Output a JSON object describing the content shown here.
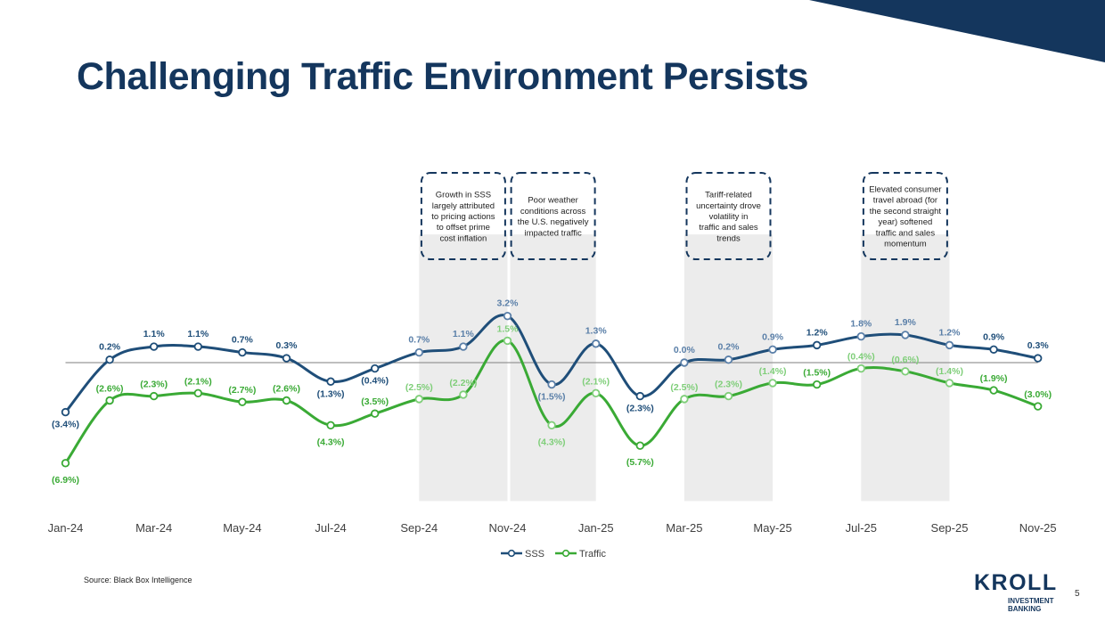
{
  "slide": {
    "title": "Challenging Traffic Environment Persists",
    "source": "Source: Black Box Intelligence",
    "page_number": "5",
    "logo": {
      "name": "KROLL",
      "sub_line1": "INVESTMENT",
      "sub_line2": "BANKING"
    }
  },
  "colors": {
    "title": "#14365d",
    "sss_line": "#1f4e79",
    "sss_line_light": "#5a7fa8",
    "traffic_line": "#3aaa35",
    "traffic_line_light": "#7fce79",
    "highlight_band": "#ececec",
    "callout_border": "#14365d"
  },
  "chart_data": {
    "type": "line",
    "categories": [
      "Jan-24",
      "Feb-24",
      "Mar-24",
      "Apr-24",
      "May-24",
      "Jun-24",
      "Jul-24",
      "Aug-24",
      "Sep-24",
      "Oct-24",
      "Nov-24",
      "Dec-24",
      "Jan-25",
      "Feb-25",
      "Mar-25",
      "Apr-25",
      "May-25",
      "Jun-25",
      "Jul-25",
      "Aug-25",
      "Sep-25",
      "Oct-25",
      "Nov-25"
    ],
    "x_tick_labels": [
      "Jan-24",
      "Mar-24",
      "May-24",
      "Jul-24",
      "Sep-24",
      "Nov-24",
      "Jan-25",
      "Mar-25",
      "May-25",
      "Jul-25",
      "Sep-25",
      "Nov-25"
    ],
    "series": [
      {
        "name": "SSS",
        "values": [
          -3.4,
          0.2,
          1.1,
          1.1,
          0.7,
          0.3,
          -1.3,
          -0.4,
          0.7,
          1.1,
          3.2,
          -1.5,
          1.3,
          -2.3,
          0.0,
          0.2,
          0.9,
          1.2,
          1.8,
          1.9,
          1.2,
          0.9,
          0.3
        ],
        "labels": [
          "(3.4%)",
          "0.2%",
          "1.1%",
          "1.1%",
          "0.7%",
          "0.3%",
          "(1.3%)",
          "(0.4%)",
          "0.7%",
          "1.1%",
          "3.2%",
          "(1.5%)",
          "1.3%",
          "(2.3%)",
          "0.0%",
          "0.2%",
          "0.9%",
          "1.2%",
          "1.8%",
          "1.9%",
          "1.2%",
          "0.9%",
          "0.3%"
        ]
      },
      {
        "name": "Traffic",
        "values": [
          -6.9,
          -2.6,
          -2.3,
          -2.1,
          -2.7,
          -2.6,
          -4.3,
          -3.5,
          -2.5,
          -2.2,
          1.5,
          -4.3,
          -2.1,
          -5.7,
          -2.5,
          -2.3,
          -1.4,
          -1.5,
          -0.4,
          -0.6,
          -1.4,
          -1.9,
          -3.0
        ],
        "labels": [
          "(6.9%)",
          "(2.6%)",
          "(2.3%)",
          "(2.1%)",
          "(2.7%)",
          "(2.6%)",
          "(4.3%)",
          "(3.5%)",
          "(2.5%)",
          "(2.2%)",
          "1.5%",
          "(4.3%)",
          "(2.1%)",
          "(5.7%)",
          "(2.5%)",
          "(2.3%)",
          "(1.4%)",
          "(1.5%)",
          "(0.4%)",
          "(0.6%)",
          "(1.4%)",
          "(1.9%)",
          "(3.0%)"
        ]
      }
    ],
    "shaded_periods": [
      {
        "from": "Sep-24",
        "to": "Nov-24",
        "callout": "Growth in SSS largely attributed to pricing actions to offset prime cost inflation"
      },
      {
        "from": "Nov-24",
        "to": "Jan-25",
        "callout": "Poor weather conditions across the U.S. negatively impacted traffic"
      },
      {
        "from": "Mar-25",
        "to": "May-25",
        "callout": "Tariff-related uncertainty drove volatility in traffic and sales trends"
      },
      {
        "from": "Jul-25",
        "to": "Sep-25",
        "callout": "Elevated consumer travel abroad (for the second straight year) softened traffic and sales momentum"
      }
    ],
    "legend": [
      "SSS",
      "Traffic"
    ],
    "legend_position": "bottom-center",
    "title": "",
    "xlabel": "",
    "ylabel": "",
    "ylim": [
      -9.5,
      8.8
    ],
    "grid": false
  }
}
